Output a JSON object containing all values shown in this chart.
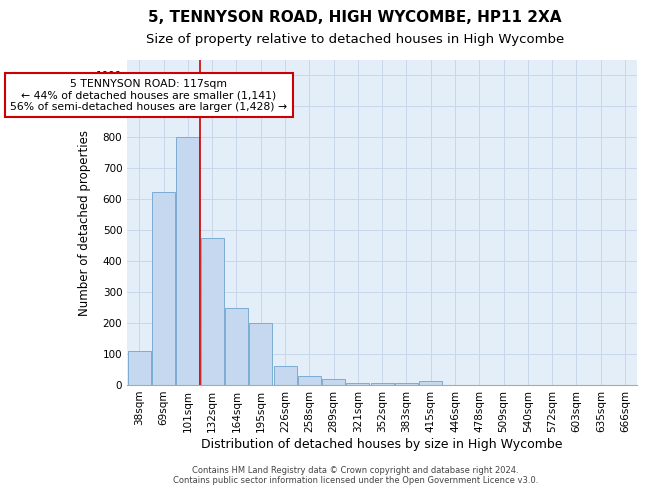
{
  "title": "5, TENNYSON ROAD, HIGH WYCOMBE, HP11 2XA",
  "subtitle": "Size of property relative to detached houses in High Wycombe",
  "xlabel": "Distribution of detached houses by size in High Wycombe",
  "ylabel": "Number of detached properties",
  "footer_line1": "Contains HM Land Registry data © Crown copyright and database right 2024.",
  "footer_line2": "Contains public sector information licensed under the Open Government Licence v3.0.",
  "categories": [
    "38sqm",
    "69sqm",
    "101sqm",
    "132sqm",
    "164sqm",
    "195sqm",
    "226sqm",
    "258sqm",
    "289sqm",
    "321sqm",
    "352sqm",
    "383sqm",
    "415sqm",
    "446sqm",
    "478sqm",
    "509sqm",
    "540sqm",
    "572sqm",
    "603sqm",
    "635sqm",
    "666sqm"
  ],
  "values": [
    110,
    625,
    800,
    475,
    250,
    200,
    62,
    28,
    18,
    5,
    5,
    8,
    12,
    0,
    0,
    0,
    0,
    0,
    0,
    0,
    0
  ],
  "bar_color": "#c5d8ef",
  "bar_edge_color": "#7aadd4",
  "grid_color": "#c8d8ea",
  "background_color": "#e4eef8",
  "vline_x_index": 2.5,
  "vline_color": "#cc0000",
  "annotation_text": "5 TENNYSON ROAD: 117sqm\n← 44% of detached houses are smaller (1,141)\n56% of semi-detached houses are larger (1,428) →",
  "annotation_box_color": "#ffffff",
  "annotation_box_edge": "#cc0000",
  "ylim": [
    0,
    1050
  ],
  "yticks": [
    0,
    100,
    200,
    300,
    400,
    500,
    600,
    700,
    800,
    900,
    1000
  ],
  "title_fontsize": 11,
  "subtitle_fontsize": 9.5,
  "xlabel_fontsize": 9,
  "ylabel_fontsize": 8.5,
  "tick_fontsize": 7.5,
  "annotation_fontsize": 7.8,
  "footer_fontsize": 6
}
